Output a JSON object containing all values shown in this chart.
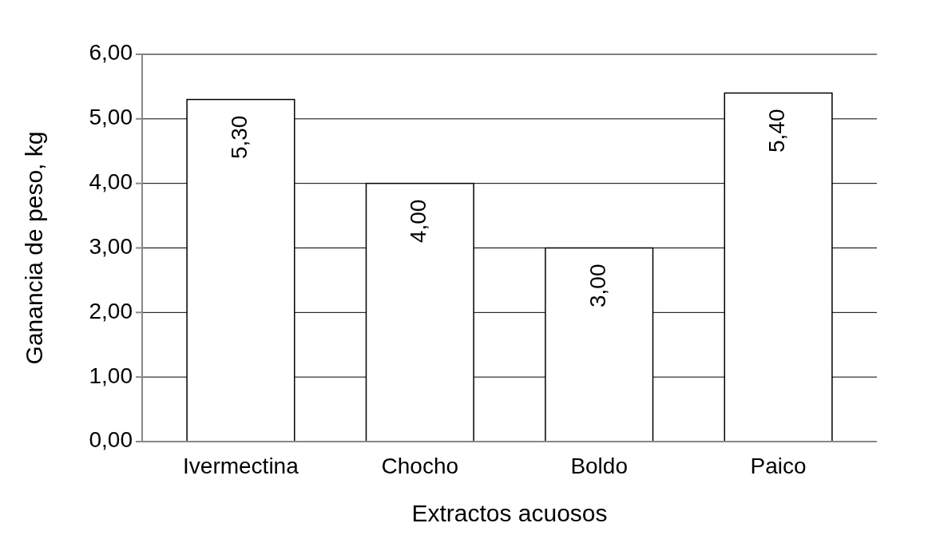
{
  "chart_data": {
    "type": "bar",
    "xlabel": "Extractos acuosos",
    "ylabel": "Ganancia de peso, kg",
    "categories": [
      "Ivermectina",
      "Chocho",
      "Boldo",
      "Paico"
    ],
    "values": [
      5.3,
      4.0,
      3.0,
      5.4
    ],
    "value_labels": [
      "5,30",
      "4,00",
      "3,00",
      "5,40"
    ],
    "color": "#ffffff",
    "ylim": [
      0,
      6
    ],
    "yticks": [
      {
        "value": 0,
        "label": "0,00"
      },
      {
        "value": 1,
        "label": "1,00"
      },
      {
        "value": 2,
        "label": "2,00"
      },
      {
        "value": 3,
        "label": "3,00"
      },
      {
        "value": 4,
        "label": "4,00"
      },
      {
        "value": 5,
        "label": "5,00"
      },
      {
        "value": 6,
        "label": "6,00"
      }
    ],
    "grid": "y"
  }
}
